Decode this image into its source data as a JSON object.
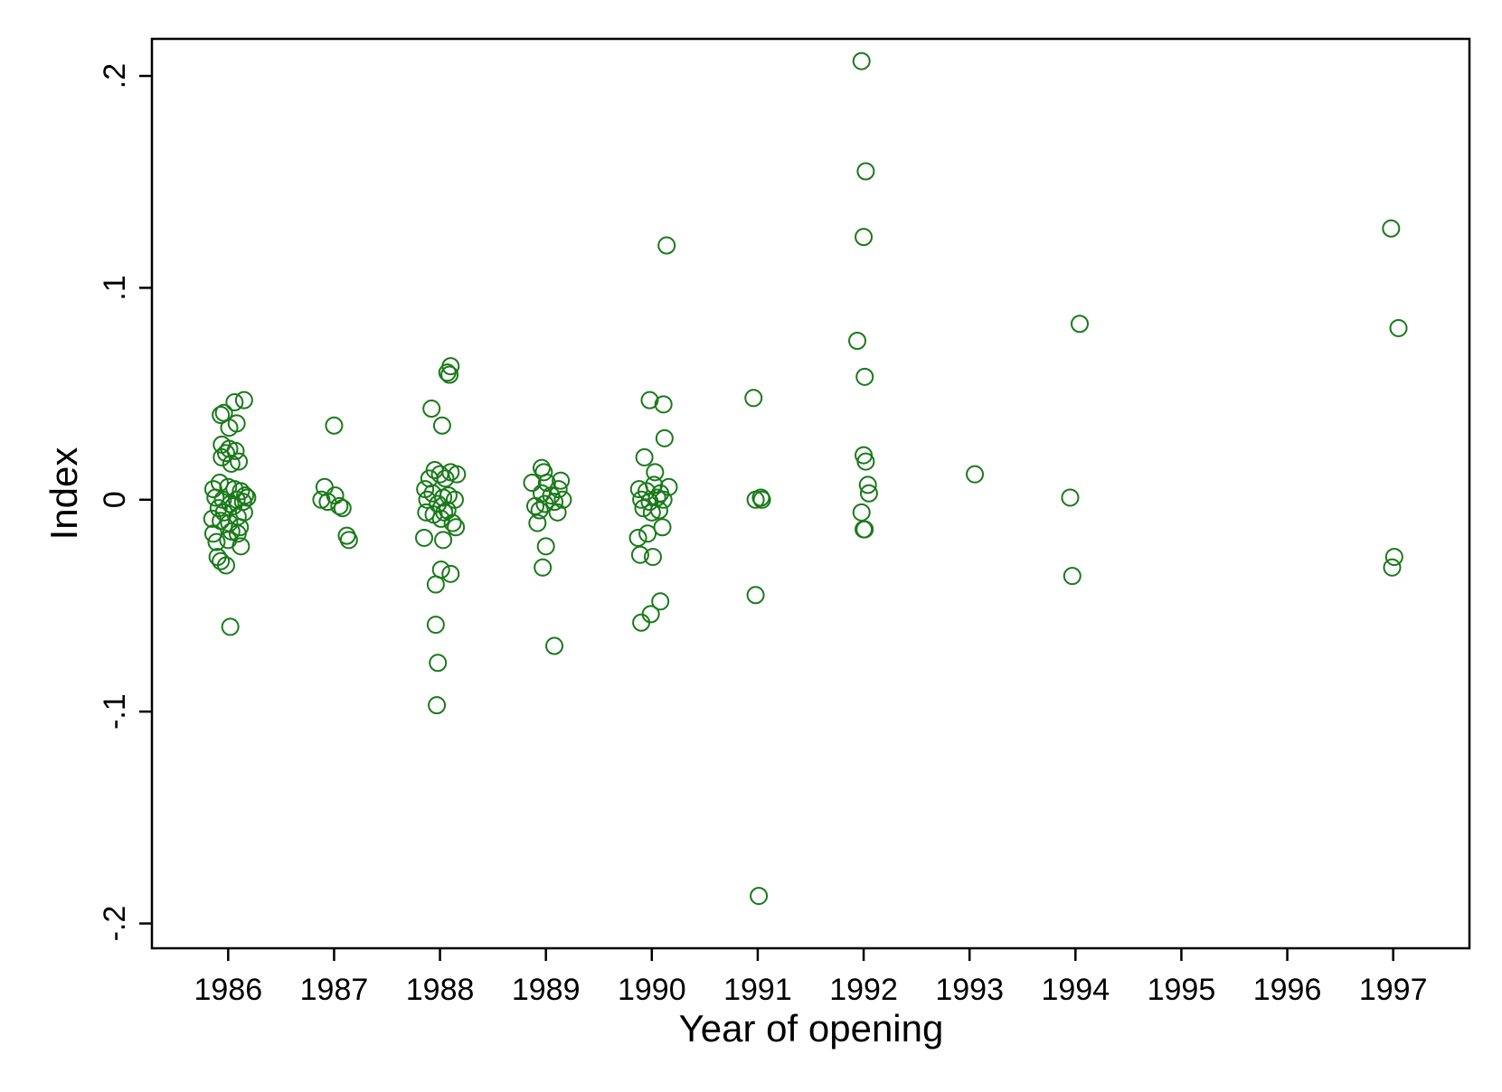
{
  "chart_data": {
    "type": "scatter",
    "xlabel": "Year of opening",
    "ylabel": "Index",
    "xlim": [
      1985.28,
      1997.72
    ],
    "ylim": [
      -0.2117,
      0.2175
    ],
    "x_ticks": [
      1986,
      1987,
      1988,
      1989,
      1990,
      1991,
      1992,
      1993,
      1994,
      1995,
      1996,
      1997
    ],
    "x_tick_labels": [
      "1986",
      "1987",
      "1988",
      "1989",
      "1990",
      "1991",
      "1992",
      "1993",
      "1994",
      "1995",
      "1996",
      "1997"
    ],
    "y_ticks": [
      -0.2,
      -0.1,
      0,
      0.1,
      0.2
    ],
    "y_tick_labels": [
      "-.2",
      "-.1",
      "0",
      ".1",
      ".2"
    ],
    "grid": false,
    "legend": "none",
    "marker": "hollow-circle",
    "color": "#1a7a1a",
    "series": [
      {
        "points": [
          [
            1985.93,
            0.04
          ],
          [
            1985.96,
            0.041
          ],
          [
            1986.06,
            0.046
          ],
          [
            1986.15,
            0.047
          ],
          [
            1986.08,
            0.036
          ],
          [
            1986.01,
            0.034
          ],
          [
            1985.94,
            0.026
          ],
          [
            1986.01,
            0.024
          ],
          [
            1986.07,
            0.023
          ],
          [
            1985.98,
            0.022
          ],
          [
            1986.1,
            0.018
          ],
          [
            1985.94,
            0.02
          ],
          [
            1986.03,
            0.017
          ],
          [
            1985.86,
            0.005
          ],
          [
            1985.92,
            0.008
          ],
          [
            1986.0,
            0.006
          ],
          [
            1986.06,
            0.005
          ],
          [
            1986.12,
            0.004
          ],
          [
            1986.16,
            0.002
          ],
          [
            1985.88,
            0.001
          ],
          [
            1985.95,
            0.0
          ],
          [
            1986.02,
            -0.002
          ],
          [
            1986.08,
            0.0
          ],
          [
            1986.14,
            -0.001
          ],
          [
            1985.91,
            -0.004
          ],
          [
            1986.05,
            -0.003
          ],
          [
            1986.18,
            0.001
          ],
          [
            1985.85,
            -0.009
          ],
          [
            1985.93,
            -0.01
          ],
          [
            1986.01,
            -0.011
          ],
          [
            1986.09,
            -0.008
          ],
          [
            1986.15,
            -0.006
          ],
          [
            1985.96,
            -0.006
          ],
          [
            1986.11,
            -0.013
          ],
          [
            1985.86,
            -0.016
          ],
          [
            1986.03,
            -0.015
          ],
          [
            1986.09,
            -0.016
          ],
          [
            1985.89,
            -0.02
          ],
          [
            1986.0,
            -0.019
          ],
          [
            1986.12,
            -0.022
          ],
          [
            1985.9,
            -0.027
          ],
          [
            1985.93,
            -0.029
          ],
          [
            1985.98,
            -0.031
          ],
          [
            1986.02,
            -0.06
          ],
          [
            1986.88,
            0.0
          ],
          [
            1986.91,
            0.006
          ],
          [
            1986.94,
            -0.001
          ],
          [
            1987.01,
            0.002
          ],
          [
            1987.05,
            -0.003
          ],
          [
            1987.08,
            -0.004
          ],
          [
            1987.0,
            0.035
          ],
          [
            1987.12,
            -0.017
          ],
          [
            1987.14,
            -0.019
          ],
          [
            1987.92,
            0.043
          ],
          [
            1988.02,
            0.035
          ],
          [
            1988.07,
            0.06
          ],
          [
            1988.1,
            0.063
          ],
          [
            1987.86,
            0.005
          ],
          [
            1987.9,
            0.01
          ],
          [
            1987.95,
            0.014
          ],
          [
            1988.0,
            0.012
          ],
          [
            1988.05,
            0.01
          ],
          [
            1988.1,
            0.013
          ],
          [
            1988.16,
            0.012
          ],
          [
            1987.88,
            0.0
          ],
          [
            1987.93,
            0.003
          ],
          [
            1987.98,
            -0.002
          ],
          [
            1988.03,
            0.001
          ],
          [
            1988.08,
            0.002
          ],
          [
            1988.14,
            0.0
          ],
          [
            1987.87,
            -0.006
          ],
          [
            1987.94,
            -0.007
          ],
          [
            1988.01,
            -0.009
          ],
          [
            1988.07,
            -0.005
          ],
          [
            1988.12,
            -0.011
          ],
          [
            1988.15,
            -0.013
          ],
          [
            1988.04,
            -0.006
          ],
          [
            1987.85,
            -0.018
          ],
          [
            1988.03,
            -0.019
          ],
          [
            1988.01,
            -0.033
          ],
          [
            1988.1,
            -0.035
          ],
          [
            1987.96,
            -0.04
          ],
          [
            1987.96,
            -0.059
          ],
          [
            1987.98,
            -0.077
          ],
          [
            1987.97,
            -0.097
          ],
          [
            1988.09,
            0.059
          ],
          [
            1988.96,
            0.015
          ],
          [
            1988.98,
            0.013
          ],
          [
            1989.14,
            0.009
          ],
          [
            1988.87,
            0.008
          ],
          [
            1989.01,
            0.008
          ],
          [
            1989.12,
            0.005
          ],
          [
            1988.96,
            0.003
          ],
          [
            1989.05,
            0.002
          ],
          [
            1989.16,
            0.0
          ],
          [
            1988.9,
            -0.003
          ],
          [
            1988.99,
            -0.002
          ],
          [
            1989.08,
            -0.001
          ],
          [
            1988.94,
            -0.005
          ],
          [
            1989.11,
            -0.006
          ],
          [
            1988.92,
            -0.011
          ],
          [
            1989.0,
            -0.022
          ],
          [
            1988.97,
            -0.032
          ],
          [
            1989.08,
            -0.069
          ],
          [
            1989.98,
            0.047
          ],
          [
            1990.11,
            0.045
          ],
          [
            1990.12,
            0.029
          ],
          [
            1989.93,
            0.02
          ],
          [
            1990.03,
            0.013
          ],
          [
            1989.88,
            0.005
          ],
          [
            1989.95,
            0.004
          ],
          [
            1990.02,
            0.007
          ],
          [
            1990.08,
            0.003
          ],
          [
            1990.16,
            0.006
          ],
          [
            1989.9,
            0.0
          ],
          [
            1989.98,
            -0.001
          ],
          [
            1990.05,
            0.001
          ],
          [
            1990.11,
            0.0
          ],
          [
            1989.92,
            -0.004
          ],
          [
            1990.0,
            -0.006
          ],
          [
            1990.07,
            -0.005
          ],
          [
            1990.1,
            -0.013
          ],
          [
            1989.96,
            -0.016
          ],
          [
            1989.87,
            -0.018
          ],
          [
            1989.89,
            -0.026
          ],
          [
            1990.01,
            -0.027
          ],
          [
            1990.08,
            -0.048
          ],
          [
            1989.99,
            -0.054
          ],
          [
            1989.9,
            -0.058
          ],
          [
            1990.14,
            0.12
          ],
          [
            1990.96,
            0.048
          ],
          [
            1990.98,
            0.0
          ],
          [
            1991.03,
            0.001
          ],
          [
            1991.04,
            0.0
          ],
          [
            1990.98,
            -0.045
          ],
          [
            1991.01,
            -0.187
          ],
          [
            1991.98,
            0.207
          ],
          [
            1992.02,
            0.155
          ],
          [
            1992.0,
            0.124
          ],
          [
            1991.94,
            0.075
          ],
          [
            1992.01,
            0.058
          ],
          [
            1992.0,
            0.021
          ],
          [
            1992.02,
            0.018
          ],
          [
            1992.04,
            0.007
          ],
          [
            1992.05,
            0.003
          ],
          [
            1991.98,
            -0.006
          ],
          [
            1992.0,
            -0.014
          ],
          [
            1992.01,
            -0.014
          ],
          [
            1993.05,
            0.012
          ],
          [
            1994.04,
            0.083
          ],
          [
            1993.95,
            0.001
          ],
          [
            1993.97,
            -0.036
          ],
          [
            1996.98,
            0.128
          ],
          [
            1997.05,
            0.081
          ],
          [
            1997.01,
            -0.027
          ],
          [
            1996.99,
            -0.032
          ]
        ]
      }
    ]
  }
}
